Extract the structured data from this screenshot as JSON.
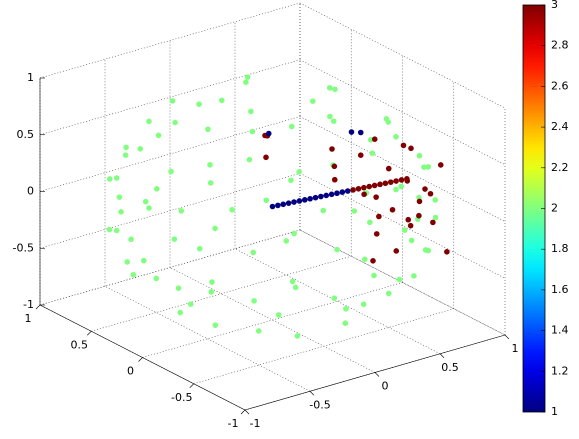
{
  "chart_data": {
    "type": "scatter3d",
    "xlim": [
      -1,
      1
    ],
    "xticks": [
      -1,
      -0.5,
      0,
      0.5,
      1
    ],
    "ylim": [
      -1,
      1
    ],
    "yticks": [
      -1,
      -0.5,
      0,
      0.5,
      1
    ],
    "zlim": [
      -1,
      1
    ],
    "zticks": [
      -1,
      -0.5,
      0,
      0.5,
      1
    ],
    "grid": true,
    "colormap": "jet",
    "clim": [
      1,
      3
    ],
    "cticks": [
      1,
      1.2,
      1.4,
      1.6,
      1.8,
      2,
      2.2,
      2.4,
      2.6,
      2.8,
      3
    ],
    "series": [
      {
        "c": 2,
        "x": [
          0.44,
          0.14,
          -0.36,
          -0.36,
          0.14,
          0.67,
          0.3,
          -0.24,
          -0.64,
          -0.67,
          -0.3,
          0.24,
          0.64,
          0.89,
          0.72,
          0.28,
          -0.28,
          -0.72,
          -0.89,
          -0.72,
          -0.28,
          0.28,
          0.72,
          0.95,
          0.82,
          0.48,
          0,
          -0.48,
          -0.82,
          -0.95,
          -0.82,
          -0.48,
          0,
          0.48,
          0.82,
          0.96,
          0.7,
          0.26,
          -0.26,
          -0.7,
          -0.96,
          -0.96,
          -0.7,
          -0.26,
          0.26,
          0.7,
          0.96,
          0.99,
          0.86,
          0.5,
          0,
          -0.5,
          -0.86,
          -0.99,
          -0.86,
          -0.5,
          0,
          0.5,
          0.86,
          0.92,
          0.67,
          0.25,
          -0.25,
          -0.67,
          -0.92,
          -0.92,
          -0.67,
          -0.25,
          0.25,
          0.67,
          0.92,
          0.85,
          0.52,
          0,
          -0.52,
          -0.85,
          -0.85,
          -0.52,
          0,
          0.52,
          0.85,
          0.71,
          0.5,
          0,
          -0.5,
          -0.71,
          -0.5,
          0,
          0.5,
          0.36,
          -0.14,
          -0.44,
          -0.14,
          0.36
        ],
        "y": [
          0,
          0.42,
          0.26,
          -0.26,
          -0.42,
          0.24,
          0.64,
          0.67,
          0.3,
          -0.24,
          -0.64,
          -0.67,
          -0.3,
          0,
          0.52,
          0.85,
          0.85,
          0.52,
          0,
          -0.52,
          -0.85,
          -0.85,
          -0.52,
          0,
          0.48,
          0.82,
          0.95,
          0.82,
          0.48,
          0,
          -0.48,
          -0.82,
          -0.95,
          -0.82,
          -0.48,
          0.26,
          0.7,
          0.96,
          0.96,
          0.7,
          0.26,
          -0.26,
          -0.7,
          -0.96,
          -0.96,
          -0.7,
          -0.26,
          0,
          0.5,
          0.86,
          0.99,
          0.86,
          0.5,
          0,
          -0.5,
          -0.86,
          -0.99,
          -0.86,
          -0.5,
          0.25,
          0.67,
          0.92,
          0.92,
          0.67,
          0.25,
          -0.25,
          -0.67,
          -0.92,
          -0.92,
          -0.67,
          -0.25,
          0.28,
          0.72,
          0.89,
          0.72,
          0.28,
          -0.28,
          -0.72,
          -0.89,
          -0.72,
          -0.28,
          0,
          0.5,
          0.71,
          0.5,
          0,
          -0.5,
          -0.71,
          -0.5,
          0.26,
          0.42,
          0,
          -0.42,
          -0.26
        ],
        "z": [
          0.9,
          0.9,
          0.9,
          0.9,
          0.9,
          0.7,
          0.7,
          0.7,
          0.7,
          0.7,
          0.7,
          0.7,
          0.7,
          0.45,
          0.45,
          0.45,
          0.45,
          0.45,
          0.45,
          0.45,
          0.45,
          0.45,
          0.45,
          0.3,
          0.3,
          0.3,
          0.3,
          0.3,
          0.3,
          0.3,
          0.3,
          0.3,
          0.3,
          0.3,
          0.3,
          0.15,
          0.15,
          0.15,
          0.15,
          0.15,
          0.15,
          0.15,
          0.15,
          0.15,
          0.15,
          0.15,
          0.15,
          -0.15,
          -0.15,
          -0.15,
          -0.15,
          -0.15,
          -0.15,
          -0.15,
          -0.15,
          -0.15,
          -0.15,
          -0.15,
          -0.15,
          -0.3,
          -0.3,
          -0.3,
          -0.3,
          -0.3,
          -0.3,
          -0.3,
          -0.3,
          -0.3,
          -0.3,
          -0.3,
          -0.3,
          -0.45,
          -0.45,
          -0.45,
          -0.45,
          -0.45,
          -0.45,
          -0.45,
          -0.45,
          -0.45,
          -0.45,
          -0.7,
          -0.7,
          -0.7,
          -0.7,
          -0.7,
          -0.7,
          -0.7,
          -0.7,
          -0.9,
          -0.9,
          -0.9,
          -0.9,
          -0.9
        ]
      },
      {
        "c": 1,
        "x": [
          0,
          0.024,
          0.048,
          0.072,
          0.096,
          0.12,
          0.144,
          0.168,
          0.192,
          0.216,
          0.24,
          0.264,
          0.288,
          0.312,
          0.336
        ],
        "y": [
          0,
          -0.022,
          -0.044,
          -0.066,
          -0.088,
          -0.11,
          -0.132,
          -0.154,
          -0.176,
          -0.198,
          -0.22,
          -0.242,
          -0.264,
          -0.286,
          -0.308
        ],
        "z": [
          0,
          0.012,
          0.024,
          0.036,
          0.048,
          0.06,
          0.072,
          0.084,
          0.096,
          0.108,
          0.12,
          0.132,
          0.144,
          0.156,
          0.168
        ]
      },
      {
        "c": 3,
        "x": [
          0.36,
          0.384,
          0.408,
          0.432,
          0.456,
          0.48,
          0.504,
          0.528,
          0.552,
          0.576,
          0.6
        ],
        "y": [
          -0.33,
          -0.352,
          -0.374,
          -0.396,
          -0.418,
          -0.44,
          -0.462,
          -0.484,
          -0.506,
          -0.528,
          -0.55
        ],
        "z": [
          0.18,
          0.192,
          0.204,
          0.216,
          0.228,
          0.24,
          0.252,
          0.264,
          0.276,
          0.288,
          0.3
        ]
      },
      {
        "c": 3,
        "x": [
          0.3,
          0.5,
          0.7,
          0.8,
          0.6,
          0.4,
          0.9,
          0.75,
          0.55,
          0.35,
          0.65,
          0.85,
          0.45,
          0.2,
          0.7,
          0.5,
          0.8,
          0.6,
          0.3,
          0.9,
          0.4,
          0.75,
          0.25,
          0.55,
          0.85,
          0,
          0.1,
          -0.05
        ],
        "y": [
          -0.2,
          -0.5,
          -0.6,
          -0.3,
          -0.1,
          -0.7,
          -0.4,
          -0.75,
          -0.3,
          -0.45,
          -0.5,
          -0.2,
          -0.6,
          -0.35,
          -0.15,
          -0.8,
          -0.55,
          -0.25,
          -0.6,
          -0.5,
          -0.1,
          -0.4,
          -0.7,
          -0.65,
          -0.35,
          0.05,
          0.2,
          0
        ],
        "z": [
          0.5,
          0.4,
          0.2,
          0.1,
          0.3,
          -0.2,
          0,
          -0.3,
          0.55,
          0.2,
          -0.1,
          0.35,
          0.1,
          0.45,
          -0.25,
          0.25,
          -0.15,
          0,
          -0.3,
          0.3,
          0.15,
          0.45,
          0,
          -0.05,
          -0.2,
          0.6,
          0.5,
          0.45
        ]
      },
      {
        "c": 1,
        "x": [
          0.45,
          0.6,
          0.05
        ],
        "y": [
          -0.2,
          -0.1,
          0.1
        ],
        "z": [
          0.6,
          0.5,
          0.58
        ]
      }
    ]
  }
}
